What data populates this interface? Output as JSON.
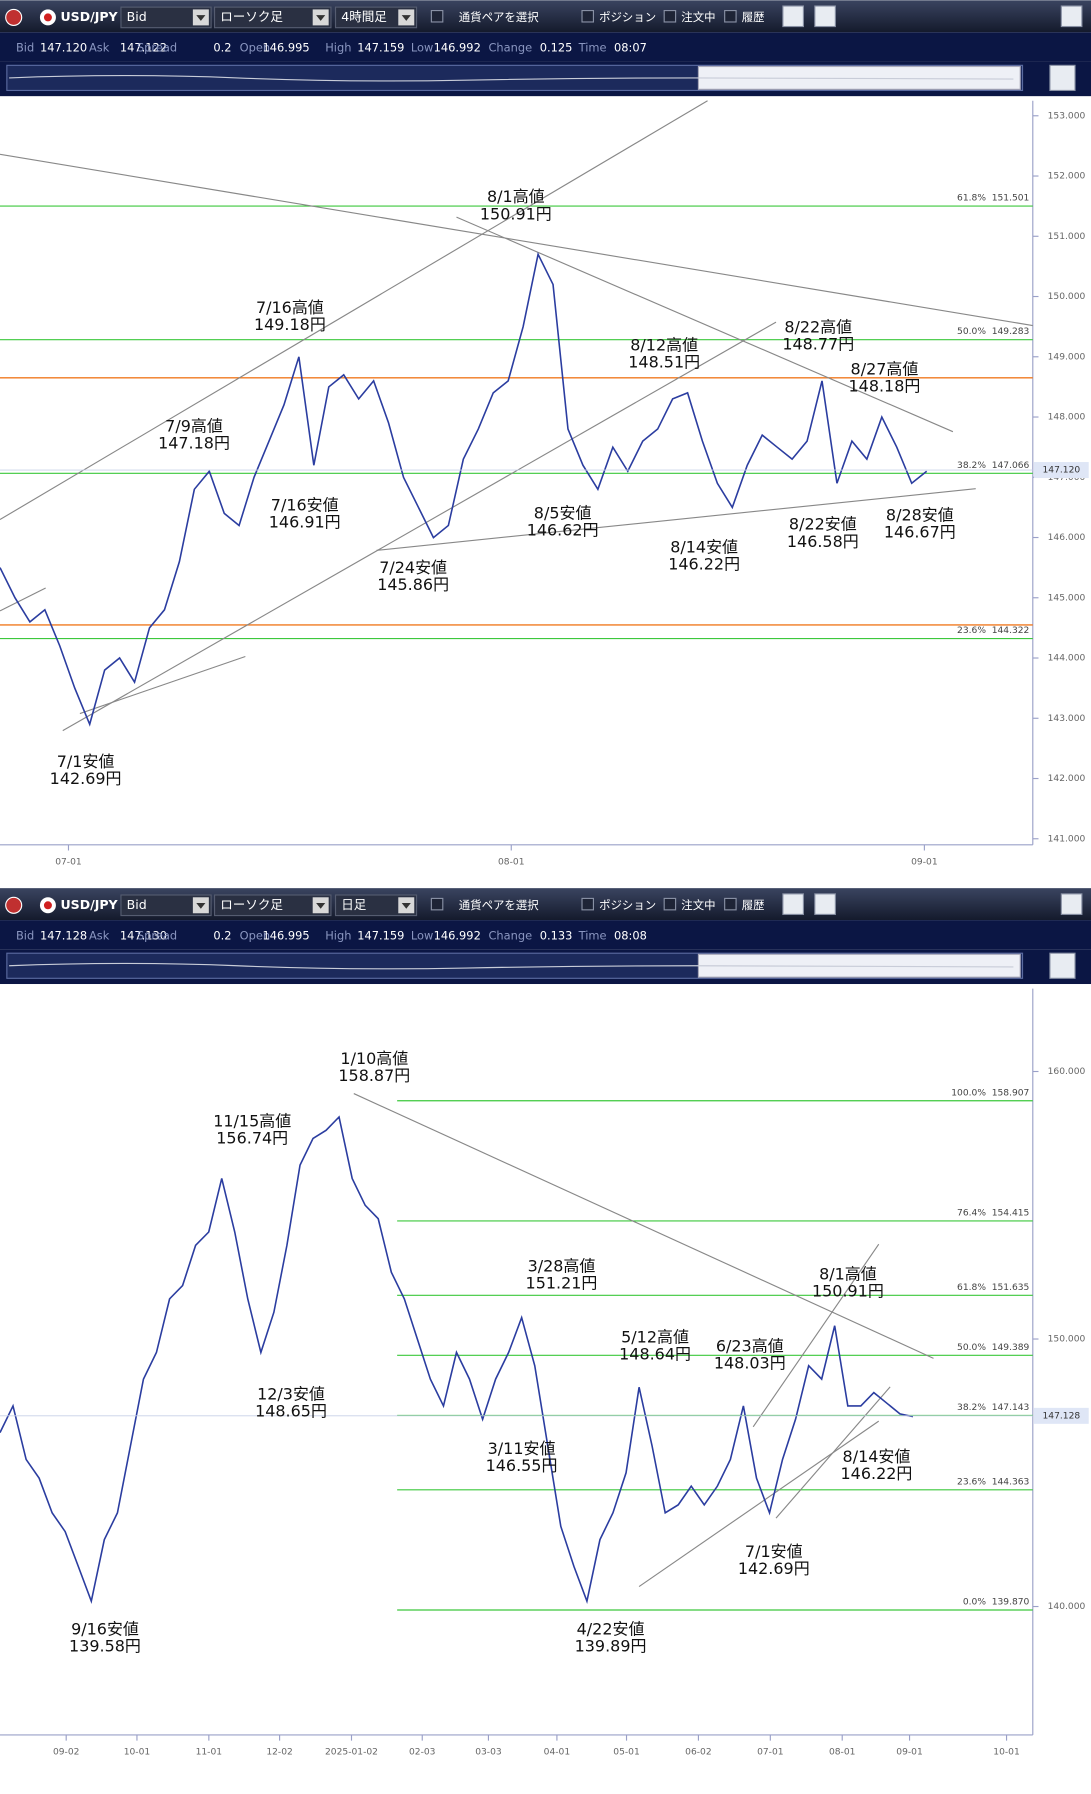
{
  "panels": [
    {
      "toolbar": {
        "pair": "USD/JPY",
        "price_type": "Bid",
        "chart_type": "ローソク足",
        "timeframe": "4時間足",
        "pair_select": "通貨ペアを選択",
        "position": "ポジション",
        "orders": "注文中",
        "history": "履歴"
      },
      "info": [
        {
          "label": "Bid",
          "value": "147.120"
        },
        {
          "label": "Ask",
          "value": "147.122"
        },
        {
          "label": "Spread",
          "value": "0.2"
        },
        {
          "label": "Open",
          "value": "146.995"
        },
        {
          "label": "High",
          "value": "147.159"
        },
        {
          "label": "Low",
          "value": "146.992"
        },
        {
          "label": "Change",
          "value": "0.125"
        },
        {
          "label": "Time",
          "value": "08:07"
        }
      ],
      "chart_data": {
        "type": "line",
        "color": "#2b3da0",
        "values": [
          145.5,
          145.0,
          144.6,
          144.8,
          144.2,
          143.5,
          142.9,
          143.8,
          144.0,
          143.6,
          144.5,
          144.8,
          145.6,
          146.8,
          147.1,
          146.4,
          146.2,
          147.0,
          147.6,
          148.2,
          149.0,
          147.2,
          148.5,
          148.7,
          148.3,
          148.6,
          147.9,
          147.0,
          146.5,
          146.0,
          146.2,
          147.3,
          147.8,
          148.4,
          148.6,
          149.5,
          150.7,
          150.2,
          147.8,
          147.2,
          146.8,
          147.5,
          147.1,
          147.6,
          147.8,
          148.3,
          148.4,
          147.6,
          146.9,
          146.5,
          147.2,
          147.7,
          147.5,
          147.3,
          147.6,
          148.6,
          146.9,
          147.6,
          147.3,
          148.0,
          147.5,
          146.9,
          147.1
        ],
        "ylim": [
          140.9,
          153.25
        ],
        "yticks": [
          {
            "value": 141,
            "label": "141.000"
          },
          {
            "value": 142,
            "label": "142.000"
          },
          {
            "value": 143,
            "label": "143.000"
          },
          {
            "value": 144,
            "label": "144.000"
          },
          {
            "value": 145,
            "label": "145.000"
          },
          {
            "value": 146,
            "label": "146.000"
          },
          {
            "value": 147,
            "label": "147.000"
          },
          {
            "value": 148,
            "label": "148.000"
          },
          {
            "value": 149,
            "label": "149.000"
          },
          {
            "value": 150,
            "label": "150.000"
          },
          {
            "value": 151,
            "label": "151.000"
          },
          {
            "value": 152,
            "label": "152.000"
          },
          {
            "value": 153,
            "label": "153.000"
          }
        ],
        "xticks": [
          "07-01",
          "08-01",
          "09-01"
        ],
        "current_price": {
          "value": 147.12,
          "label": "147.120"
        },
        "fib_levels": [
          {
            "pct": "61.8%",
            "level": 151.501
          },
          {
            "pct": "50.0%",
            "level": 149.283
          },
          {
            "pct": "38.2%",
            "level": 147.066
          },
          {
            "pct": "23.6%",
            "level": 144.322
          }
        ],
        "hlines": [
          148.65,
          144.55
        ],
        "hline_color": "#f07a20",
        "fib_color": "#3cc83c",
        "annotations": [
          {
            "text": "7/1安値",
            "price": "142.69円"
          },
          {
            "text": "7/9高値",
            "price": "147.18円"
          },
          {
            "text": "7/16高値",
            "price": "149.18円"
          },
          {
            "text": "7/16安値",
            "price": "146.91円"
          },
          {
            "text": "7/24安値",
            "price": "145.86円"
          },
          {
            "text": "8/1高値",
            "price": "150.91円"
          },
          {
            "text": "8/5安値",
            "price": "146.62円"
          },
          {
            "text": "8/12高値",
            "price": "148.51円"
          },
          {
            "text": "8/14安値",
            "price": "146.22円"
          },
          {
            "text": "8/22高値",
            "price": "148.77円"
          },
          {
            "text": "8/22安値",
            "price": "146.58円"
          },
          {
            "text": "8/27高値",
            "price": "148.18円"
          },
          {
            "text": "8/28安値",
            "price": "146.67円"
          }
        ]
      }
    },
    {
      "toolbar": {
        "pair": "USD/JPY",
        "price_type": "Bid",
        "chart_type": "ローソク足",
        "timeframe": "日足",
        "pair_select": "通貨ペアを選択",
        "position": "ポジション",
        "orders": "注文中",
        "history": "履歴"
      },
      "info": [
        {
          "label": "Bid",
          "value": "147.128"
        },
        {
          "label": "Ask",
          "value": "147.130"
        },
        {
          "label": "Spread",
          "value": "0.2"
        },
        {
          "label": "Open",
          "value": "146.995"
        },
        {
          "label": "High",
          "value": "147.159"
        },
        {
          "label": "Low",
          "value": "146.992"
        },
        {
          "label": "Change",
          "value": "0.133"
        },
        {
          "label": "Time",
          "value": "08:08"
        }
      ],
      "chart_data": {
        "type": "line",
        "color": "#2b3da0",
        "values": [
          146.5,
          147.5,
          145.5,
          144.8,
          143.5,
          142.8,
          141.5,
          140.2,
          142.5,
          143.5,
          146.0,
          148.5,
          149.5,
          151.5,
          152.0,
          153.5,
          154.0,
          156.0,
          154.0,
          151.5,
          149.5,
          151.0,
          153.5,
          156.5,
          157.5,
          157.8,
          158.3,
          156.0,
          155.0,
          154.5,
          152.5,
          151.5,
          150.0,
          148.5,
          147.5,
          149.5,
          148.5,
          147.0,
          148.5,
          149.5,
          150.8,
          149.0,
          146.0,
          143.0,
          141.5,
          140.2,
          142.5,
          143.5,
          145.0,
          148.2,
          146.0,
          143.5,
          143.8,
          144.5,
          143.8,
          144.5,
          145.5,
          147.5,
          144.8,
          143.5,
          145.5,
          147.0,
          149.0,
          148.5,
          150.5,
          147.5,
          147.5,
          148.0,
          147.6,
          147.2,
          147.1
        ],
        "ylim": [
          135.2,
          163.1
        ],
        "yticks": [
          {
            "value": 140,
            "label": "140.000"
          },
          {
            "value": 150,
            "label": "150.000"
          },
          {
            "value": 160,
            "label": "160.000"
          }
        ],
        "xticks": [
          "09-02",
          "10-01",
          "11-01",
          "12-02",
          "2025-01-02",
          "02-03",
          "03-03",
          "04-01",
          "05-01",
          "06-02",
          "07-01",
          "08-01",
          "09-01",
          "10-01"
        ],
        "current_price": {
          "value": 147.128,
          "label": "147.128"
        },
        "fib_levels": [
          {
            "pct": "100.0%",
            "level": 158.907
          },
          {
            "pct": "76.4%",
            "level": 154.415
          },
          {
            "pct": "61.8%",
            "level": 151.635
          },
          {
            "pct": "50.0%",
            "level": 149.389
          },
          {
            "pct": "38.2%",
            "level": 147.143
          },
          {
            "pct": "23.6%",
            "level": 144.363
          },
          {
            "pct": "0.0%",
            "level": {
              "value": 139.87,
              "label": "139.870"
            }
          }
        ],
        "hlines": [],
        "hline_color": "#f07a20",
        "fib_color": "#3cc83c",
        "annotations": [
          {
            "text": "9/16安値",
            "price": "139.58円"
          },
          {
            "text": "11/15高値",
            "price": "156.74円"
          },
          {
            "text": "12/3安値",
            "price": "148.65円"
          },
          {
            "text": "1/10高値",
            "price": "158.87円"
          },
          {
            "text": "3/11安値",
            "price": "146.55円"
          },
          {
            "text": "3/28高値",
            "price": "151.21円"
          },
          {
            "text": "4/22安値",
            "price": "139.89円"
          },
          {
            "text": "5/12高値",
            "price": "148.64円"
          },
          {
            "text": "6/23高値",
            "price": "148.03円"
          },
          {
            "text": "8/1高値",
            "price": "150.91円"
          },
          {
            "text": "7/1安値",
            "price": "142.69円"
          },
          {
            "text": "8/14安値",
            "price": "146.22円"
          }
        ]
      }
    }
  ]
}
